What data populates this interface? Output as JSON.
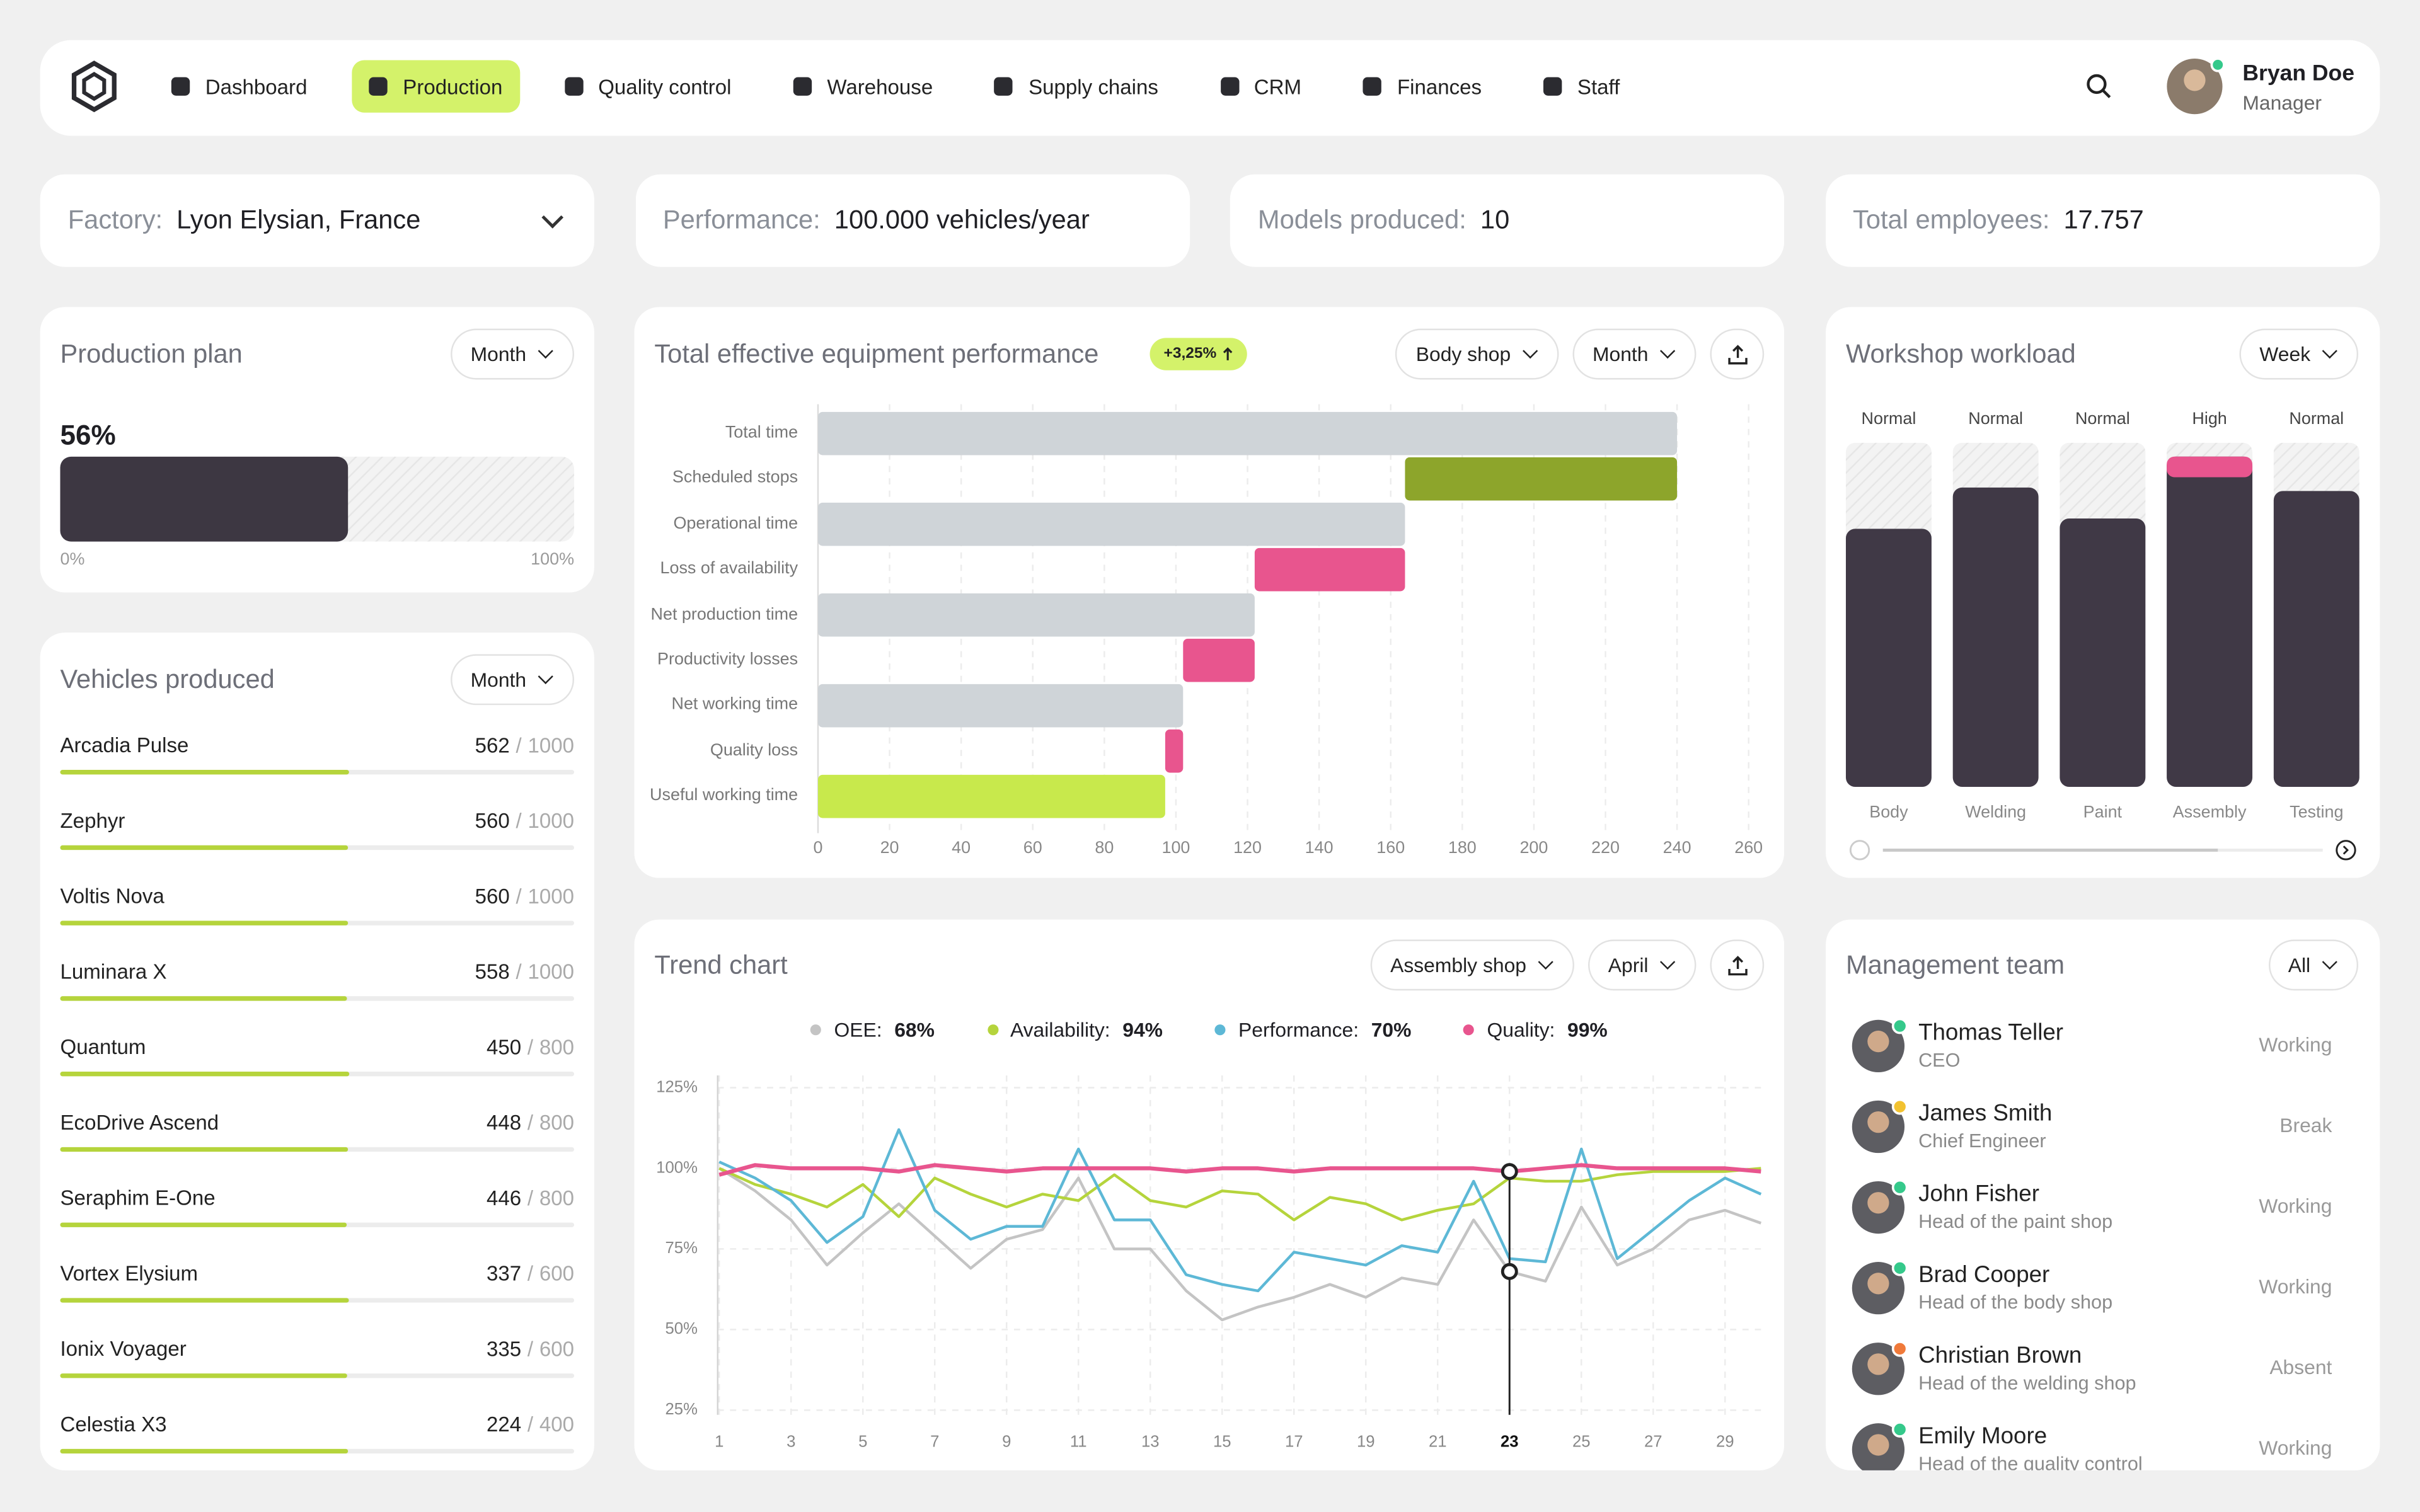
{
  "nav": {
    "items": [
      "Dashboard",
      "Production",
      "Quality control",
      "Warehouse",
      "Supply chains",
      "CRM",
      "Finances",
      "Staff"
    ],
    "active": 1
  },
  "user": {
    "name": "Bryan Doe",
    "role": "Manager"
  },
  "stats": [
    {
      "label": "Factory:",
      "value": "Lyon Elysian,  France"
    },
    {
      "label": "Performance:",
      "value": "100.000 vehicles/year"
    },
    {
      "label": "Models produced:",
      "value": "10"
    },
    {
      "label": "Total employees:",
      "value": "17.757"
    }
  ],
  "production_plan": {
    "title": "Production plan",
    "filter": "Month",
    "chart_data": {
      "type": "progress",
      "value": 56,
      "value_label": "56%",
      "color": "#3d3742",
      "xlim": [
        0,
        100
      ],
      "xticks": [
        {
          "value": 0,
          "label": "0%"
        },
        {
          "value": 100,
          "label": "100%"
        }
      ]
    }
  },
  "vehicles": {
    "title": "Vehicles produced",
    "filter": "Month",
    "separator": "/",
    "color": "#b5d43c",
    "items": [
      {
        "name": "Arcadia Pulse",
        "value": 562,
        "target": 1000
      },
      {
        "name": "Zephyr",
        "value": 560,
        "target": 1000
      },
      {
        "name": "Voltis Nova",
        "value": 560,
        "target": 1000
      },
      {
        "name": "Luminara X",
        "value": 558,
        "target": 1000
      },
      {
        "name": "Quantum",
        "value": 450,
        "target": 800
      },
      {
        "name": "EcoDrive Ascend",
        "value": 448,
        "target": 800
      },
      {
        "name": "Seraphim E-One",
        "value": 446,
        "target": 800
      },
      {
        "name": "Vortex Elysium",
        "value": 337,
        "target": 600
      },
      {
        "name": "Ionix Voyager",
        "value": 335,
        "target": 600
      },
      {
        "name": "Celestia X3",
        "value": 224,
        "target": 400
      }
    ]
  },
  "equipment": {
    "title": "Total effective equipment performance",
    "badge": "+3,25%",
    "filters": [
      "Body shop",
      "Month"
    ],
    "chart_data": {
      "type": "waterfall",
      "categories": [
        "Total time",
        "Scheduled stops",
        "Operational time",
        "Loss of availability",
        "Net production time",
        "Productivity losses",
        "Net working time",
        "Quality loss",
        "Useful working time"
      ],
      "values": [
        240,
        76,
        164,
        42,
        122,
        20,
        102,
        5,
        97
      ],
      "kinds": [
        "total",
        "loss",
        "total",
        "loss",
        "total",
        "loss",
        "total",
        "loss",
        "total"
      ],
      "colors": [
        "#cfd4d8",
        "#8da52b",
        "#cfd4d8",
        "#e8558e",
        "#cfd4d8",
        "#e8558e",
        "#cfd4d8",
        "#e8558e",
        "#c8e94c"
      ],
      "xlim": [
        0,
        260
      ],
      "xticks": [
        0,
        20,
        40,
        60,
        80,
        100,
        120,
        140,
        160,
        180,
        200,
        220,
        240,
        260
      ],
      "grid": true
    }
  },
  "workload": {
    "title": "Workshop workload",
    "filter": "Week",
    "chart_data": {
      "type": "bar",
      "categories": [
        "Body",
        "Welding",
        "Paint",
        "Assembly",
        "Testing"
      ],
      "statuses": [
        "Normal",
        "Normal",
        "Normal",
        "High",
        "Normal"
      ],
      "values": [
        75,
        87,
        78,
        96,
        86
      ],
      "limit": 90,
      "ylim": [
        0,
        100
      ],
      "color": "#403946",
      "over_color": "#e8558e"
    }
  },
  "trend": {
    "title": "Trend chart",
    "filters": [
      "Assembly shop",
      "April"
    ],
    "chart_data": {
      "type": "line",
      "x": [
        1,
        2,
        3,
        4,
        5,
        6,
        7,
        8,
        9,
        10,
        11,
        12,
        13,
        14,
        15,
        16,
        17,
        18,
        19,
        20,
        21,
        22,
        23,
        24,
        25,
        26,
        27,
        28,
        29,
        30
      ],
      "series": [
        {
          "name": "OEE:",
          "summary": "68%",
          "color": "#c4c4c4",
          "values": [
            100,
            93,
            84,
            70,
            80,
            89,
            79,
            69,
            78,
            81,
            97,
            75,
            75,
            62,
            53,
            57,
            60,
            64,
            60,
            66,
            64,
            84,
            68,
            65,
            88,
            70,
            75,
            84,
            87,
            83
          ]
        },
        {
          "name": "Availability:",
          "summary": "94%",
          "color": "#b5d43c",
          "values": [
            100,
            95,
            92,
            88,
            95,
            85,
            97,
            92,
            88,
            92,
            90,
            98,
            90,
            88,
            93,
            92,
            84,
            91,
            89,
            84,
            87,
            89,
            97,
            96,
            96,
            98,
            99,
            99,
            99,
            100
          ]
        },
        {
          "name": "Performance:",
          "summary": "70%",
          "color": "#5db8d6",
          "values": [
            102,
            97,
            90,
            77,
            85,
            112,
            87,
            78,
            82,
            82,
            106,
            84,
            84,
            67,
            64,
            62,
            74,
            72,
            70,
            76,
            74,
            96,
            72,
            71,
            106,
            72,
            81,
            90,
            97,
            92
          ]
        },
        {
          "name": "Quality:",
          "summary": "99%",
          "color": "#e8558e",
          "values": [
            98,
            101,
            100,
            100,
            100,
            99,
            101,
            100,
            99,
            100,
            100,
            100,
            100,
            99,
            100,
            100,
            99,
            100,
            100,
            100,
            100,
            100,
            99,
            100,
            101,
            100,
            100,
            100,
            100,
            99
          ]
        }
      ],
      "xlim": [
        1,
        30
      ],
      "xticks": [
        1,
        3,
        5,
        7,
        9,
        11,
        13,
        15,
        17,
        19,
        21,
        23,
        25,
        27,
        29
      ],
      "highlight_x": 23,
      "ylim": [
        25,
        125
      ],
      "yticks": [
        {
          "value": 125,
          "label": "125%"
        },
        {
          "value": 100,
          "label": "100%"
        },
        {
          "value": 75,
          "label": "75%"
        },
        {
          "value": 50,
          "label": "50%"
        },
        {
          "value": 25,
          "label": "25%"
        }
      ],
      "grid": true
    }
  },
  "team": {
    "title": "Management team",
    "filter": "All",
    "status_colors": {
      "Working": "#35c98b",
      "Break": "#f2c230",
      "Absent": "#f07a3a"
    },
    "members": [
      {
        "name": "Thomas Teller",
        "role": "CEO",
        "status": "Working"
      },
      {
        "name": "James Smith",
        "role": "Chief Engineer",
        "status": "Break"
      },
      {
        "name": "John Fisher",
        "role": "Head of the paint shop",
        "status": "Working"
      },
      {
        "name": "Brad Cooper",
        "role": "Head of the body shop",
        "status": "Working"
      },
      {
        "name": "Christian Brown",
        "role": "Head of the welding shop",
        "status": "Absent"
      },
      {
        "name": "Emily Moore",
        "role": "Head of the quality control",
        "status": "Working"
      }
    ]
  }
}
